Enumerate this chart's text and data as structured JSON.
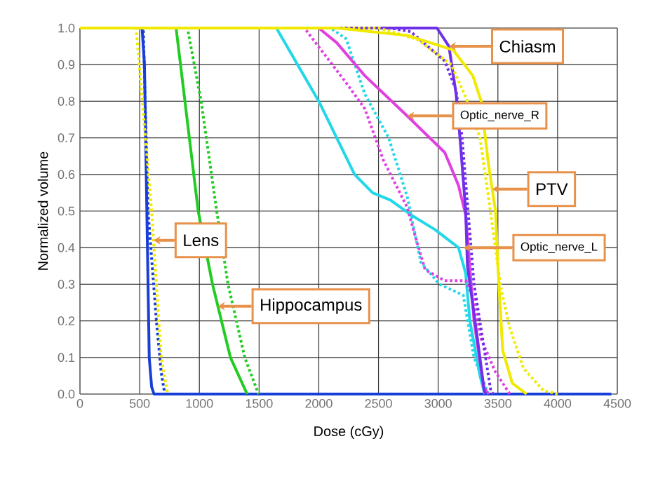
{
  "chart_data": {
    "type": "line",
    "xlabel": "Dose (cGy)",
    "ylabel": "Normalized volume",
    "xlim": [
      0,
      4500
    ],
    "ylim": [
      0,
      1
    ],
    "xticks": [
      0,
      500,
      1000,
      1500,
      2000,
      2500,
      3000,
      3500,
      4000,
      4500
    ],
    "yticks": [
      {
        "value": 0,
        "label": "0.0"
      },
      {
        "value": 0.1,
        "label": "0.1"
      },
      {
        "value": 0.2,
        "label": "0.2"
      },
      {
        "value": 0.3,
        "label": "0.3"
      },
      {
        "value": 0.4,
        "label": "0.4"
      },
      {
        "value": 0.5,
        "label": "0.5"
      },
      {
        "value": 0.6,
        "label": "0.6"
      },
      {
        "value": 0.7,
        "label": "0.7"
      },
      {
        "value": 0.8,
        "label": "0.8"
      },
      {
        "value": 0.9,
        "label": "0.9"
      },
      {
        "value": 1,
        "label": "1.0"
      }
    ],
    "grid": true,
    "marker": "none",
    "series": [
      {
        "color": "#1a3fd8",
        "line_style": "solid",
        "x": [
          0,
          520,
          540,
          560,
          580,
          600,
          620,
          4450
        ],
        "values": [
          1,
          1,
          0.9,
          0.5,
          0.1,
          0.02,
          0,
          0
        ]
      },
      {
        "color": "#1a3fd8",
        "line_style": "dotted",
        "x": [
          0,
          530,
          570,
          640,
          680,
          710
        ],
        "values": [
          1,
          1,
          0.5,
          0.2,
          0.06,
          0
        ]
      },
      {
        "color": "#f0ea00",
        "line_style": "dotted",
        "x": [
          0,
          470,
          600,
          680,
          735
        ],
        "values": [
          1,
          1,
          0.5,
          0.1,
          0
        ]
      },
      {
        "color": "#22cc22",
        "line_style": "solid",
        "x": [
          0,
          805,
          990,
          1110,
          1260,
          1400
        ],
        "values": [
          1,
          1,
          0.5,
          0.3,
          0.1,
          0
        ]
      },
      {
        "color": "#22cc22",
        "line_style": "dotted",
        "x": [
          0,
          900,
          1015,
          1145,
          1240,
          1380,
          1495
        ],
        "values": [
          1,
          1,
          0.8,
          0.5,
          0.3,
          0.1,
          0
        ]
      },
      {
        "color": "#22d8e8",
        "line_style": "solid",
        "x": [
          0,
          1645,
          2000,
          2150,
          2300,
          2450,
          2600,
          2770,
          2970,
          3170,
          3230,
          3265,
          3350,
          3390
        ],
        "values": [
          1,
          1,
          0.8,
          0.7,
          0.6,
          0.55,
          0.53,
          0.49,
          0.45,
          0.4,
          0.33,
          0.2,
          0.05,
          0
        ]
      },
      {
        "color": "#22d8e8",
        "line_style": "dotted",
        "x": [
          0,
          2100,
          2230,
          2385,
          2585,
          2740,
          2855,
          3010,
          3210,
          3300,
          3420
        ],
        "values": [
          1,
          1,
          0.97,
          0.82,
          0.7,
          0.54,
          0.36,
          0.3,
          0.27,
          0.1,
          0
        ]
      },
      {
        "color": "#e040e0",
        "line_style": "solid",
        "x": [
          0,
          2000,
          2150,
          2385,
          2740,
          3055,
          3170,
          3230,
          3300,
          3380,
          3420
        ],
        "values": [
          1,
          1,
          0.96,
          0.87,
          0.76,
          0.66,
          0.57,
          0.49,
          0.2,
          0.02,
          0
        ]
      },
      {
        "color": "#e040e0",
        "line_style": "dotted",
        "x": [
          0,
          1880,
          2230,
          2385,
          2540,
          2740,
          2800,
          2890,
          3055,
          3230,
          3300,
          3360,
          3480,
          3600
        ],
        "values": [
          1,
          1,
          0.85,
          0.78,
          0.64,
          0.51,
          0.44,
          0.34,
          0.31,
          0.31,
          0.26,
          0.15,
          0.06,
          0
        ]
      },
      {
        "color": "#7030e8",
        "line_style": "solid",
        "x": [
          0,
          2990,
          3090,
          3150,
          3185,
          3230,
          3245,
          3325,
          3385,
          3400
        ],
        "values": [
          1,
          1,
          0.95,
          0.82,
          0.69,
          0.5,
          0.35,
          0.16,
          0.01,
          0
        ]
      },
      {
        "color": "#7030e8",
        "line_style": "dotted",
        "x": [
          0,
          2600,
          2770,
          3055,
          3150,
          3200,
          3300,
          3440,
          3460
        ],
        "values": [
          1,
          1,
          0.99,
          0.91,
          0.83,
          0.7,
          0.3,
          0.01,
          0
        ]
      },
      {
        "color": "#f0ea00",
        "line_style": "solid",
        "x": [
          0,
          2150,
          2740,
          3125,
          3290,
          3360,
          3420,
          3480,
          3500,
          3540,
          3620,
          3740
        ],
        "values": [
          1,
          1,
          0.98,
          0.94,
          0.87,
          0.8,
          0.63,
          0.5,
          0.35,
          0.12,
          0.03,
          0
        ]
      },
      {
        "color": "#f0ea00",
        "line_style": "dotted",
        "x": [
          0,
          2500,
          2820,
          3110,
          3245,
          3350,
          3420,
          3525,
          3600,
          3715,
          3880,
          4000
        ],
        "values": [
          1,
          1,
          0.97,
          0.9,
          0.8,
          0.7,
          0.54,
          0.29,
          0.18,
          0.07,
          0.01,
          0
        ]
      }
    ],
    "annotations": [
      {
        "text": "Chiasm",
        "x": 3090,
        "y": 0.95
      },
      {
        "text": "Optic_nerve_R",
        "x": 2740,
        "y": 0.76
      },
      {
        "text": "PTV",
        "x": 3452,
        "y": 0.56
      },
      {
        "text": "Optic_nerve_L",
        "x": 3210,
        "y": 0.4
      },
      {
        "text": "Lens",
        "x": 616,
        "y": 0.42
      },
      {
        "text": "Hippocampus",
        "x": 1155,
        "y": 0.24
      }
    ]
  }
}
